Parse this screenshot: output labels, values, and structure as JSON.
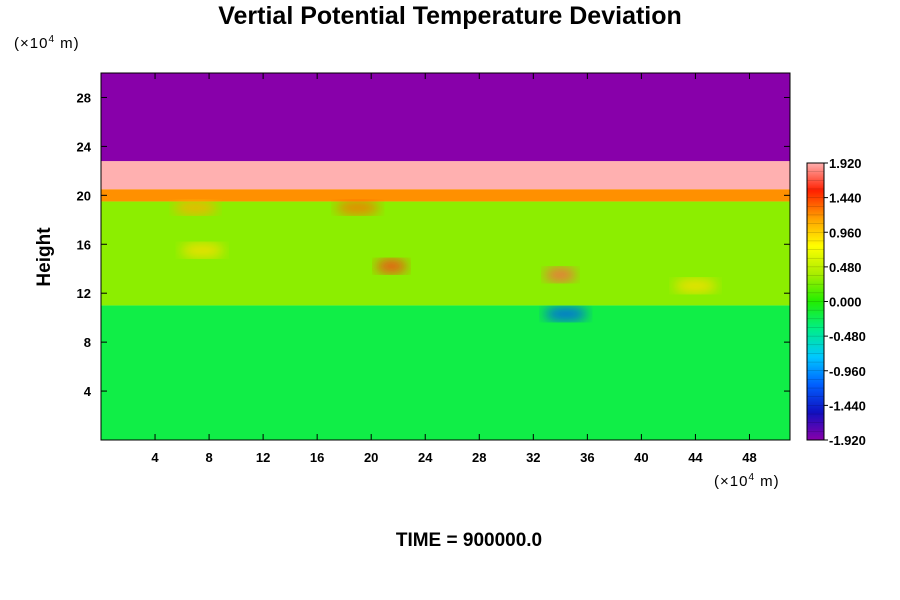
{
  "chart_data": {
    "type": "heatmap",
    "title": "Vertial Potential Temperature Deviation",
    "subtitle": "TIME = 900000.0",
    "ylabel": "Height",
    "xlabel": "",
    "x_unit": {
      "prefix": "(×10",
      "exp": "4",
      "suffix": " m)"
    },
    "y_unit": {
      "prefix": "(×10",
      "exp": "4",
      "suffix": " m)"
    },
    "xlim": [
      0,
      51
    ],
    "ylim": [
      0,
      30
    ],
    "x_ticks": [
      "4",
      "8",
      "12",
      "16",
      "20",
      "24",
      "28",
      "32",
      "36",
      "40",
      "44",
      "48"
    ],
    "x_tick_values": [
      4,
      8,
      12,
      16,
      20,
      24,
      28,
      32,
      36,
      40,
      44,
      48
    ],
    "y_ticks": [
      "4",
      "8",
      "12",
      "16",
      "20",
      "24",
      "28"
    ],
    "y_tick_values": [
      4,
      8,
      12,
      16,
      20,
      24,
      28
    ],
    "colorbar": {
      "min": -1.92,
      "max": 1.92,
      "labels": [
        "1.920",
        "1.440",
        "0.960",
        "0.480",
        "0.000",
        "-0.480",
        "-0.960",
        "-1.440",
        "-1.920"
      ],
      "label_values": [
        1.92,
        1.44,
        0.96,
        0.48,
        0.0,
        -0.48,
        -0.96,
        -1.44,
        -1.92
      ]
    },
    "regions": [
      {
        "y_range": [
          0,
          11
        ],
        "value": -0.2
      },
      {
        "y_range": [
          11,
          19.5
        ],
        "value": 0.3
      },
      {
        "y_range": [
          19.5,
          20.5
        ],
        "value": 1.2
      },
      {
        "y_range": [
          20.5,
          22.8
        ],
        "value": 1.92
      },
      {
        "y_range": [
          22.8,
          30
        ],
        "value": -1.92
      }
    ],
    "hotspots": [
      {
        "x": 21.5,
        "y": 14.2,
        "value": 1.6
      },
      {
        "x": 34.0,
        "y": 13.5,
        "value": 1.7
      },
      {
        "x": 19.0,
        "y": 19.0,
        "value": 1.3
      },
      {
        "x": 7.0,
        "y": 19.0,
        "value": 1.1
      },
      {
        "x": 34.4,
        "y": 10.3,
        "value": -1.2
      },
      {
        "x": 7.5,
        "y": 15.5,
        "value": 0.9
      },
      {
        "x": 44.0,
        "y": 12.6,
        "value": 0.9
      }
    ],
    "colors": {
      "scale": [
        "#8800aa",
        "#1010c0",
        "#0060ff",
        "#00c8ff",
        "#00ee88",
        "#22ee00",
        "#aaee00",
        "#ffff00",
        "#ffa000",
        "#ff2000",
        "#ffb0b0"
      ]
    }
  }
}
